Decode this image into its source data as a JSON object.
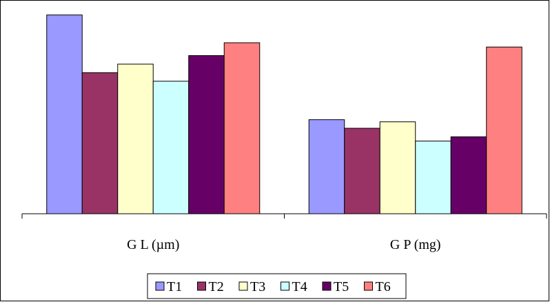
{
  "chart_data": {
    "type": "bar",
    "categories": [
      "G L (µm)",
      "G P (mg)"
    ],
    "series": [
      {
        "name": "T1",
        "color": "#9999FF",
        "values": [
          93,
          44
        ]
      },
      {
        "name": "T2",
        "color": "#993366",
        "values": [
          66,
          40
        ]
      },
      {
        "name": "T3",
        "color": "#FFFFCC",
        "values": [
          70,
          43
        ]
      },
      {
        "name": "T4",
        "color": "#CCFFFF",
        "values": [
          62,
          34
        ]
      },
      {
        "name": "T5",
        "color": "#660066",
        "values": [
          74,
          36
        ]
      },
      {
        "name": "T6",
        "color": "#FF8080",
        "values": [
          80,
          78
        ]
      }
    ],
    "ylim": [
      0,
      100
    ],
    "grid": false,
    "legend_position": "bottom"
  }
}
